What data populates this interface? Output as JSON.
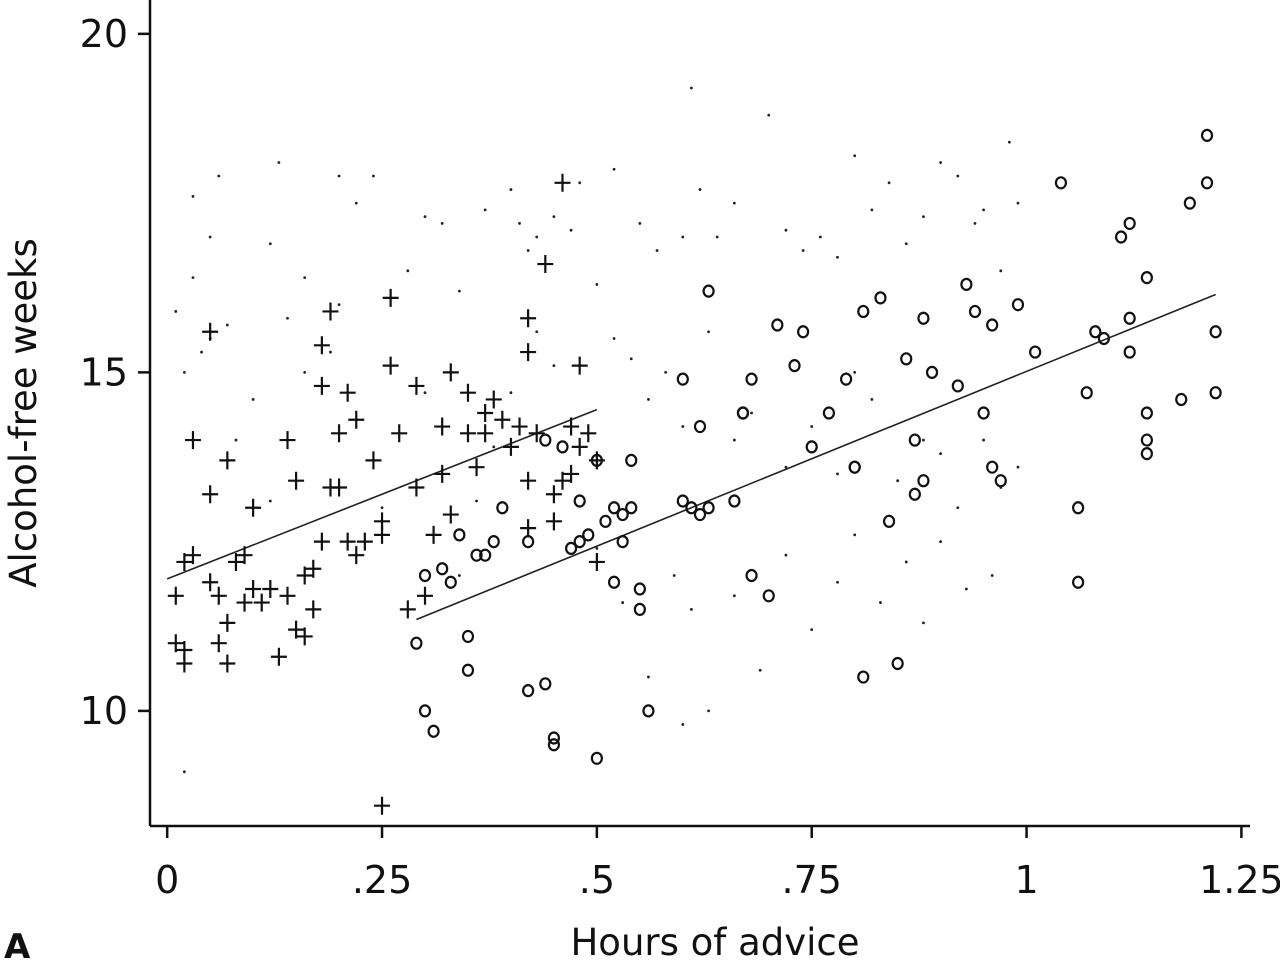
{
  "panel_label": "A",
  "chart_data": {
    "type": "scatter",
    "title": "",
    "xlabel": "Hours of advice",
    "ylabel": "Alcohol-free weeks",
    "xlim": [
      -0.02,
      1.26
    ],
    "ylim": [
      8.3,
      20.5
    ],
    "x_ticks": [
      0,
      0.25,
      0.5,
      0.75,
      1,
      1.25
    ],
    "x_tick_labels": [
      "0",
      ".25",
      ".5",
      ".75",
      "1",
      "1.25"
    ],
    "y_ticks": [
      10,
      15,
      20
    ],
    "y_tick_labels": [
      "10",
      "15",
      "20"
    ],
    "grid": false,
    "legend": "none",
    "series": [
      {
        "marker": "dot",
        "color": "#222222",
        "points": [
          [
            0.01,
            15.9
          ],
          [
            0.02,
            15.0
          ],
          [
            0.03,
            16.4
          ],
          [
            0.04,
            15.3
          ],
          [
            0.05,
            15.5
          ],
          [
            0.03,
            17.6
          ],
          [
            0.05,
            17.0
          ],
          [
            0.06,
            17.9
          ],
          [
            0.07,
            15.7
          ],
          [
            0.02,
            9.1
          ],
          [
            0.08,
            14.0
          ],
          [
            0.1,
            14.6
          ],
          [
            0.12,
            16.9
          ],
          [
            0.13,
            18.1
          ],
          [
            0.14,
            15.8
          ],
          [
            0.16,
            16.4
          ],
          [
            0.19,
            15.3
          ],
          [
            0.2,
            17.9
          ],
          [
            0.22,
            17.5
          ],
          [
            0.24,
            17.9
          ],
          [
            0.26,
            16.1
          ],
          [
            0.28,
            16.5
          ],
          [
            0.3,
            17.3
          ],
          [
            0.32,
            17.2
          ],
          [
            0.34,
            16.2
          ],
          [
            0.37,
            17.4
          ],
          [
            0.4,
            17.7
          ],
          [
            0.41,
            17.2
          ],
          [
            0.42,
            16.8
          ],
          [
            0.43,
            17.0
          ],
          [
            0.44,
            16.6
          ],
          [
            0.45,
            17.3
          ],
          [
            0.47,
            17.1
          ],
          [
            0.48,
            17.8
          ],
          [
            0.5,
            16.3
          ],
          [
            0.52,
            18.0
          ],
          [
            0.55,
            17.2
          ],
          [
            0.57,
            16.8
          ],
          [
            0.6,
            17.0
          ],
          [
            0.61,
            19.2
          ],
          [
            0.62,
            17.7
          ],
          [
            0.64,
            17.0
          ],
          [
            0.66,
            17.5
          ],
          [
            0.7,
            18.8
          ],
          [
            0.72,
            17.1
          ],
          [
            0.74,
            16.8
          ],
          [
            0.76,
            17.0
          ],
          [
            0.78,
            16.7
          ],
          [
            0.8,
            18.2
          ],
          [
            0.82,
            17.4
          ],
          [
            0.84,
            17.8
          ],
          [
            0.86,
            16.9
          ],
          [
            0.88,
            17.3
          ],
          [
            0.9,
            18.1
          ],
          [
            0.92,
            17.9
          ],
          [
            0.94,
            17.2
          ],
          [
            0.95,
            17.4
          ],
          [
            0.97,
            16.5
          ],
          [
            0.99,
            17.5
          ],
          [
            0.98,
            18.4
          ],
          [
            0.52,
            15.5
          ],
          [
            0.54,
            15.2
          ],
          [
            0.56,
            14.6
          ],
          [
            0.58,
            15.0
          ],
          [
            0.6,
            14.2
          ],
          [
            0.63,
            15.6
          ],
          [
            0.66,
            14.0
          ],
          [
            0.68,
            14.4
          ],
          [
            0.72,
            13.6
          ],
          [
            0.75,
            14.2
          ],
          [
            0.78,
            13.5
          ],
          [
            0.8,
            15.0
          ],
          [
            0.82,
            14.6
          ],
          [
            0.85,
            13.4
          ],
          [
            0.88,
            14.0
          ],
          [
            0.9,
            13.8
          ],
          [
            0.92,
            13.0
          ],
          [
            0.95,
            14.0
          ],
          [
            0.97,
            13.3
          ],
          [
            0.99,
            13.6
          ],
          [
            0.5,
            12.4
          ],
          [
            0.53,
            11.6
          ],
          [
            0.56,
            10.5
          ],
          [
            0.59,
            12.0
          ],
          [
            0.61,
            11.5
          ],
          [
            0.63,
            10.0
          ],
          [
            0.66,
            11.7
          ],
          [
            0.69,
            10.6
          ],
          [
            0.72,
            12.3
          ],
          [
            0.75,
            11.2
          ],
          [
            0.78,
            11.9
          ],
          [
            0.8,
            12.6
          ],
          [
            0.83,
            11.6
          ],
          [
            0.86,
            12.2
          ],
          [
            0.88,
            11.3
          ],
          [
            0.9,
            12.5
          ],
          [
            0.93,
            11.8
          ],
          [
            0.96,
            12.0
          ],
          [
            0.6,
            9.8
          ],
          [
            0.34,
            12.0
          ],
          [
            0.36,
            13.1
          ],
          [
            0.38,
            13.9
          ],
          [
            0.4,
            14.7
          ],
          [
            0.43,
            15.6
          ],
          [
            0.45,
            15.1
          ],
          [
            0.2,
            16.0
          ],
          [
            0.16,
            15.0
          ],
          [
            0.12,
            13.1
          ],
          [
            0.25,
            13.0
          ],
          [
            0.3,
            14.7
          ]
        ]
      },
      {
        "marker": "plus",
        "color": "#111111",
        "points": [
          [
            0.01,
            11.7
          ],
          [
            0.01,
            11.0
          ],
          [
            0.02,
            10.7
          ],
          [
            0.02,
            10.9
          ],
          [
            0.02,
            12.2
          ],
          [
            0.03,
            14.0
          ],
          [
            0.03,
            12.3
          ],
          [
            0.05,
            13.2
          ],
          [
            0.05,
            11.9
          ],
          [
            0.05,
            15.6
          ],
          [
            0.06,
            11.7
          ],
          [
            0.06,
            11.0
          ],
          [
            0.07,
            11.3
          ],
          [
            0.07,
            10.7
          ],
          [
            0.07,
            13.7
          ],
          [
            0.08,
            12.2
          ],
          [
            0.09,
            11.6
          ],
          [
            0.09,
            12.3
          ],
          [
            0.1,
            13.0
          ],
          [
            0.1,
            11.8
          ],
          [
            0.11,
            11.6
          ],
          [
            0.12,
            11.8
          ],
          [
            0.13,
            10.8
          ],
          [
            0.14,
            11.7
          ],
          [
            0.14,
            14.0
          ],
          [
            0.15,
            13.4
          ],
          [
            0.15,
            11.2
          ],
          [
            0.16,
            12.0
          ],
          [
            0.16,
            11.1
          ],
          [
            0.17,
            12.1
          ],
          [
            0.17,
            11.5
          ],
          [
            0.18,
            12.5
          ],
          [
            0.18,
            14.8
          ],
          [
            0.18,
            15.4
          ],
          [
            0.19,
            13.3
          ],
          [
            0.19,
            15.9
          ],
          [
            0.2,
            14.1
          ],
          [
            0.2,
            13.3
          ],
          [
            0.21,
            12.5
          ],
          [
            0.21,
            14.7
          ],
          [
            0.22,
            14.3
          ],
          [
            0.22,
            12.3
          ],
          [
            0.23,
            12.5
          ],
          [
            0.24,
            13.7
          ],
          [
            0.25,
            12.8
          ],
          [
            0.25,
            12.6
          ],
          [
            0.26,
            15.1
          ],
          [
            0.26,
            16.1
          ],
          [
            0.27,
            14.1
          ],
          [
            0.28,
            11.5
          ],
          [
            0.29,
            13.3
          ],
          [
            0.29,
            14.8
          ],
          [
            0.3,
            11.7
          ],
          [
            0.31,
            12.6
          ],
          [
            0.32,
            14.2
          ],
          [
            0.32,
            13.5
          ],
          [
            0.33,
            12.9
          ],
          [
            0.33,
            15.0
          ],
          [
            0.35,
            14.7
          ],
          [
            0.35,
            14.1
          ],
          [
            0.36,
            13.6
          ],
          [
            0.37,
            14.4
          ],
          [
            0.37,
            14.1
          ],
          [
            0.38,
            14.6
          ],
          [
            0.39,
            14.3
          ],
          [
            0.4,
            13.9
          ],
          [
            0.41,
            14.2
          ],
          [
            0.42,
            12.7
          ],
          [
            0.42,
            13.4
          ],
          [
            0.42,
            15.8
          ],
          [
            0.42,
            15.3
          ],
          [
            0.43,
            14.1
          ],
          [
            0.44,
            16.6
          ],
          [
            0.45,
            13.2
          ],
          [
            0.45,
            12.8
          ],
          [
            0.46,
            13.4
          ],
          [
            0.46,
            17.8
          ],
          [
            0.47,
            13.5
          ],
          [
            0.47,
            14.2
          ],
          [
            0.48,
            13.9
          ],
          [
            0.48,
            15.1
          ],
          [
            0.49,
            14.1
          ],
          [
            0.5,
            13.7
          ],
          [
            0.5,
            12.2
          ],
          [
            0.25,
            8.6
          ]
        ]
      },
      {
        "marker": "circle",
        "color": "#111111",
        "points": [
          [
            0.29,
            11.0
          ],
          [
            0.3,
            12.0
          ],
          [
            0.3,
            10.0
          ],
          [
            0.31,
            9.7
          ],
          [
            0.32,
            12.1
          ],
          [
            0.33,
            11.9
          ],
          [
            0.34,
            12.6
          ],
          [
            0.35,
            11.1
          ],
          [
            0.35,
            10.6
          ],
          [
            0.36,
            12.3
          ],
          [
            0.37,
            12.3
          ],
          [
            0.38,
            12.5
          ],
          [
            0.39,
            13.0
          ],
          [
            0.42,
            10.3
          ],
          [
            0.42,
            12.5
          ],
          [
            0.44,
            14.0
          ],
          [
            0.44,
            10.4
          ],
          [
            0.45,
            9.5
          ],
          [
            0.45,
            9.6
          ],
          [
            0.46,
            13.9
          ],
          [
            0.47,
            12.4
          ],
          [
            0.48,
            12.5
          ],
          [
            0.48,
            13.1
          ],
          [
            0.49,
            12.6
          ],
          [
            0.5,
            13.7
          ],
          [
            0.5,
            9.3
          ],
          [
            0.51,
            12.8
          ],
          [
            0.52,
            11.9
          ],
          [
            0.52,
            13.0
          ],
          [
            0.53,
            12.9
          ],
          [
            0.53,
            12.5
          ],
          [
            0.54,
            13.0
          ],
          [
            0.54,
            13.7
          ],
          [
            0.55,
            11.5
          ],
          [
            0.55,
            11.8
          ],
          [
            0.56,
            10.0
          ],
          [
            0.6,
            13.1
          ],
          [
            0.6,
            14.9
          ],
          [
            0.61,
            13.0
          ],
          [
            0.62,
            12.9
          ],
          [
            0.62,
            14.2
          ],
          [
            0.63,
            16.2
          ],
          [
            0.63,
            13.0
          ],
          [
            0.66,
            13.1
          ],
          [
            0.67,
            14.4
          ],
          [
            0.67,
            14.4
          ],
          [
            0.68,
            12.0
          ],
          [
            0.68,
            14.9
          ],
          [
            0.7,
            11.7
          ],
          [
            0.71,
            15.7
          ],
          [
            0.73,
            15.1
          ],
          [
            0.74,
            15.6
          ],
          [
            0.75,
            13.9
          ],
          [
            0.77,
            14.4
          ],
          [
            0.79,
            14.9
          ],
          [
            0.8,
            13.6
          ],
          [
            0.8,
            13.6
          ],
          [
            0.81,
            15.9
          ],
          [
            0.81,
            10.5
          ],
          [
            0.83,
            16.1
          ],
          [
            0.84,
            12.8
          ],
          [
            0.85,
            10.7
          ],
          [
            0.86,
            15.2
          ],
          [
            0.87,
            13.2
          ],
          [
            0.87,
            14.0
          ],
          [
            0.88,
            13.4
          ],
          [
            0.88,
            15.8
          ],
          [
            0.89,
            15.0
          ],
          [
            0.92,
            14.8
          ],
          [
            0.93,
            16.3
          ],
          [
            0.94,
            15.9
          ],
          [
            0.95,
            14.4
          ],
          [
            0.96,
            15.7
          ],
          [
            0.96,
            13.6
          ],
          [
            0.97,
            13.4
          ],
          [
            0.99,
            16.0
          ],
          [
            1.01,
            15.3
          ],
          [
            1.04,
            17.8
          ],
          [
            1.06,
            13.0
          ],
          [
            1.06,
            11.9
          ],
          [
            1.07,
            14.7
          ],
          [
            1.08,
            15.6
          ],
          [
            1.09,
            15.5
          ],
          [
            1.11,
            17.0
          ],
          [
            1.12,
            17.2
          ],
          [
            1.12,
            15.8
          ],
          [
            1.12,
            15.3
          ],
          [
            1.14,
            16.4
          ],
          [
            1.14,
            14.4
          ],
          [
            1.14,
            14.0
          ],
          [
            1.14,
            13.8
          ],
          [
            1.18,
            14.6
          ],
          [
            1.19,
            17.5
          ],
          [
            1.21,
            18.5
          ],
          [
            1.21,
            17.8
          ],
          [
            1.22,
            15.6
          ],
          [
            1.22,
            14.7
          ]
        ]
      }
    ],
    "fit_lines": [
      {
        "x": [
          0.0,
          0.5
        ],
        "y": [
          11.95,
          14.45
        ],
        "color": "#222222"
      },
      {
        "x": [
          0.29,
          1.22
        ],
        "y": [
          11.35,
          16.15
        ],
        "color": "#222222"
      }
    ]
  }
}
